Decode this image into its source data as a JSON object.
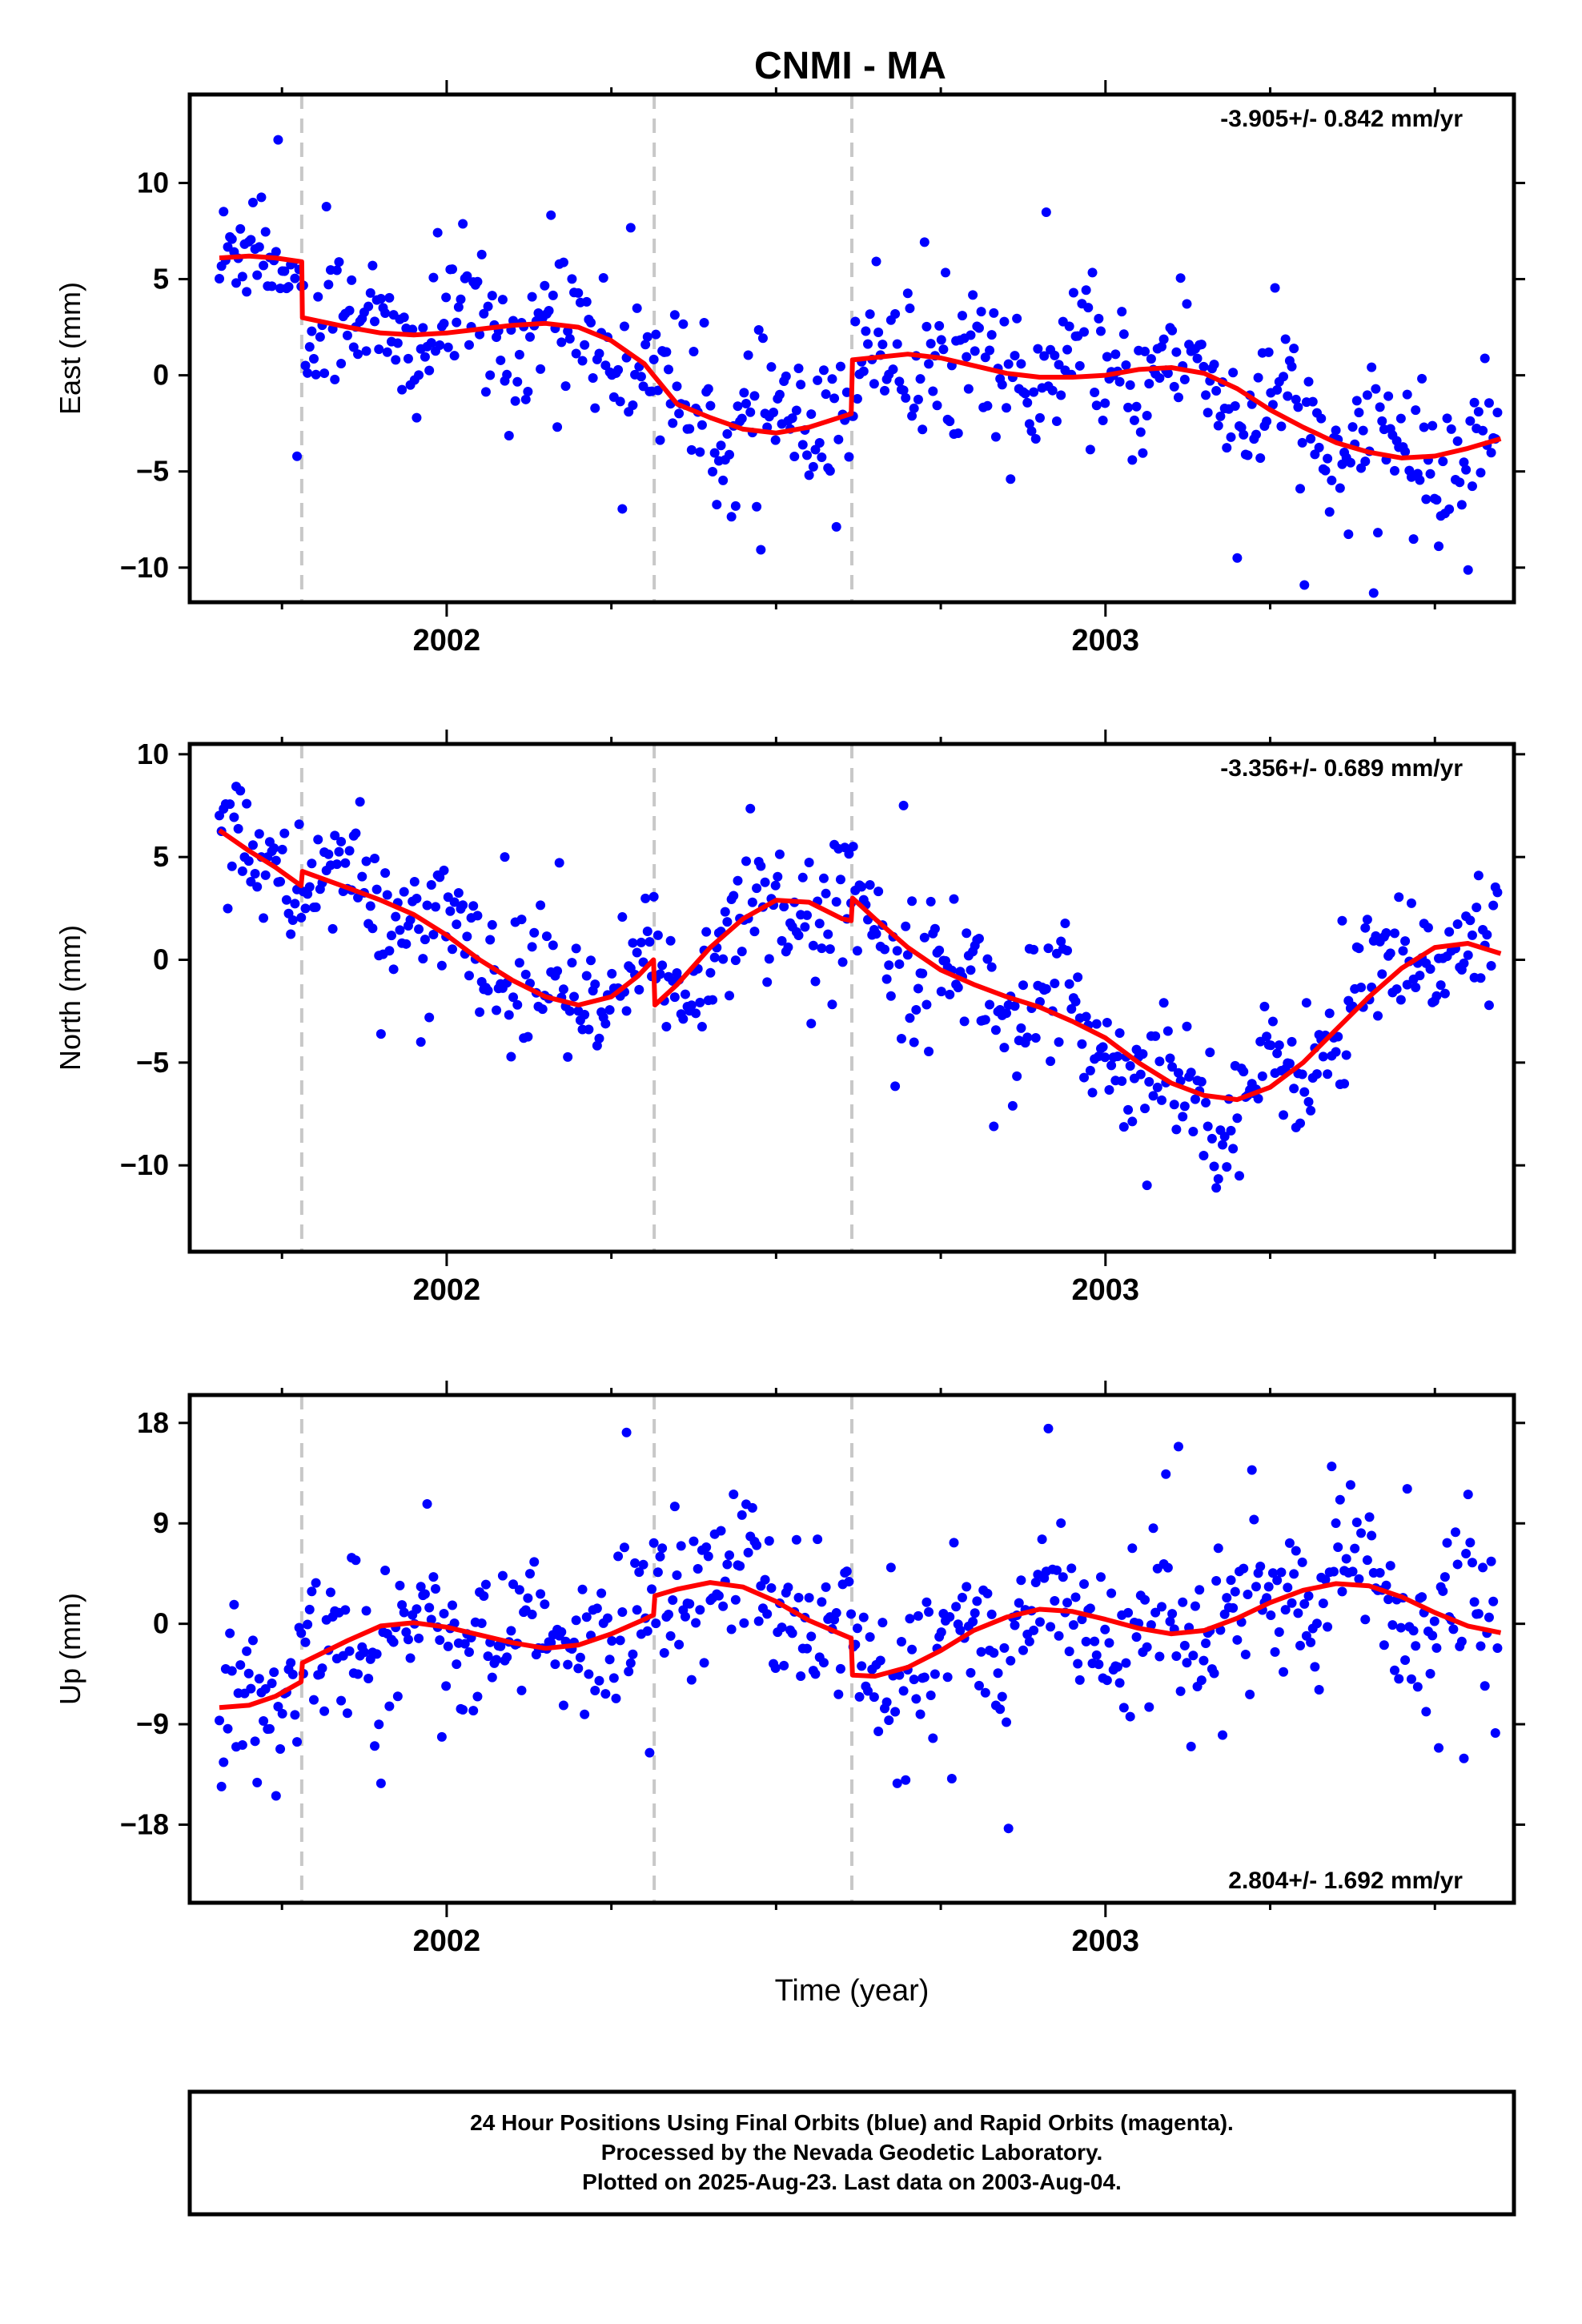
{
  "title": "CNMI - MA",
  "footer": {
    "lines": [
      "24 Hour Positions Using Final Orbits (blue) and Rapid Orbits (magenta).",
      "Processed by the Nevada Geodetic Laboratory.",
      "Plotted on 2025-Aug-23. Last data on 2003-Aug-04."
    ]
  },
  "colors": {
    "points": "#0000ff",
    "model": "#ff0000",
    "breaks": "#c8c8c8",
    "frame": "#000000"
  },
  "chart_data": [
    {
      "type": "scatter",
      "name": "east",
      "ylabel": "East (mm)",
      "xlabel": "",
      "rate_text": "-3.905+/- 0.842 mm/yr",
      "xlim": [
        2001.61,
        2003.62
      ],
      "ylim": [
        -11.8,
        14.6
      ],
      "yticks": [
        -10,
        -5,
        0,
        5,
        10
      ],
      "xticks": [
        2002,
        2003
      ],
      "break_epochs": [
        2001.78,
        2002.315,
        2002.615
      ],
      "model_curve": [
        [
          2001.655,
          6.1
        ],
        [
          2001.7,
          6.2
        ],
        [
          2001.74,
          6.1
        ],
        [
          2001.78,
          5.9
        ],
        [
          2001.781,
          3.0
        ],
        [
          2001.85,
          2.5
        ],
        [
          2001.9,
          2.2
        ],
        [
          2001.95,
          2.1
        ],
        [
          2002.0,
          2.2
        ],
        [
          2002.05,
          2.4
        ],
        [
          2002.1,
          2.6
        ],
        [
          2002.15,
          2.7
        ],
        [
          2002.2,
          2.5
        ],
        [
          2002.25,
          1.8
        ],
        [
          2002.3,
          0.6
        ],
        [
          2002.314,
          0.0
        ],
        [
          2002.35,
          -1.5
        ],
        [
          2002.4,
          -2.2
        ],
        [
          2002.45,
          -2.8
        ],
        [
          2002.5,
          -3.0
        ],
        [
          2002.55,
          -2.7
        ],
        [
          2002.614,
          -2.0
        ],
        [
          2002.616,
          0.8
        ],
        [
          2002.7,
          1.1
        ],
        [
          2002.75,
          0.9
        ],
        [
          2002.8,
          0.5
        ],
        [
          2002.85,
          0.1
        ],
        [
          2002.9,
          -0.1
        ],
        [
          2002.95,
          -0.1
        ],
        [
          2003.0,
          0.0
        ],
        [
          2003.05,
          0.3
        ],
        [
          2003.1,
          0.4
        ],
        [
          2003.15,
          0.1
        ],
        [
          2003.2,
          -0.7
        ],
        [
          2003.25,
          -1.8
        ],
        [
          2003.3,
          -2.7
        ],
        [
          2003.35,
          -3.5
        ],
        [
          2003.4,
          -4.0
        ],
        [
          2003.45,
          -4.3
        ],
        [
          2003.5,
          -4.2
        ],
        [
          2003.55,
          -3.8
        ],
        [
          2003.6,
          -3.3
        ]
      ],
      "amplitude": 3.4
    },
    {
      "type": "scatter",
      "name": "north",
      "ylabel": "North (mm)",
      "xlabel": "",
      "rate_text": "-3.356+/- 0.689 mm/yr",
      "xlim": [
        2001.61,
        2003.62
      ],
      "ylim": [
        -14.2,
        10.5
      ],
      "yticks": [
        -10,
        -5,
        0,
        5,
        10
      ],
      "xticks": [
        2002,
        2003
      ],
      "break_epochs": [
        2001.78,
        2002.315,
        2002.615
      ],
      "model_curve": [
        [
          2001.655,
          6.3
        ],
        [
          2001.7,
          5.3
        ],
        [
          2001.74,
          4.5
        ],
        [
          2001.779,
          3.6
        ],
        [
          2001.781,
          4.3
        ],
        [
          2001.85,
          3.5
        ],
        [
          2001.9,
          2.9
        ],
        [
          2001.95,
          2.2
        ],
        [
          2002.0,
          1.2
        ],
        [
          2002.05,
          0.0
        ],
        [
          2002.1,
          -1.0
        ],
        [
          2002.15,
          -1.8
        ],
        [
          2002.2,
          -2.2
        ],
        [
          2002.25,
          -1.8
        ],
        [
          2002.29,
          -0.8
        ],
        [
          2002.314,
          0.0
        ],
        [
          2002.316,
          -2.2
        ],
        [
          2002.35,
          -1.2
        ],
        [
          2002.4,
          0.6
        ],
        [
          2002.45,
          2.0
        ],
        [
          2002.5,
          2.9
        ],
        [
          2002.55,
          2.8
        ],
        [
          2002.6,
          2.0
        ],
        [
          2002.614,
          1.9
        ],
        [
          2002.616,
          3.0
        ],
        [
          2002.65,
          2.0
        ],
        [
          2002.7,
          0.6
        ],
        [
          2002.75,
          -0.5
        ],
        [
          2002.8,
          -1.2
        ],
        [
          2002.85,
          -1.8
        ],
        [
          2002.9,
          -2.3
        ],
        [
          2002.95,
          -3.0
        ],
        [
          2003.0,
          -3.8
        ],
        [
          2003.05,
          -5.0
        ],
        [
          2003.1,
          -6.0
        ],
        [
          2003.15,
          -6.6
        ],
        [
          2003.2,
          -6.8
        ],
        [
          2003.25,
          -6.2
        ],
        [
          2003.3,
          -5.0
        ],
        [
          2003.35,
          -3.4
        ],
        [
          2003.4,
          -1.8
        ],
        [
          2003.45,
          -0.4
        ],
        [
          2003.5,
          0.6
        ],
        [
          2003.55,
          0.8
        ],
        [
          2003.6,
          0.3
        ]
      ],
      "amplitude": 2.8
    },
    {
      "type": "scatter",
      "name": "up",
      "ylabel": "Up (mm)",
      "xlabel": "Time (year)",
      "rate_text": "2.804+/- 1.692 mm/yr",
      "xlim": [
        2001.61,
        2003.62
      ],
      "ylim": [
        -25.0,
        20.5
      ],
      "yticks": [
        -18,
        -9,
        0,
        9,
        18
      ],
      "xticks": [
        2002,
        2003
      ],
      "break_epochs": [
        2001.78,
        2002.315,
        2002.615
      ],
      "model_curve": [
        [
          2001.655,
          -7.5
        ],
        [
          2001.7,
          -7.3
        ],
        [
          2001.74,
          -6.5
        ],
        [
          2001.779,
          -5.2
        ],
        [
          2001.781,
          -3.5
        ],
        [
          2001.85,
          -1.5
        ],
        [
          2001.9,
          -0.2
        ],
        [
          2001.95,
          0.1
        ],
        [
          2002.0,
          -0.3
        ],
        [
          2002.05,
          -1.0
        ],
        [
          2002.1,
          -1.7
        ],
        [
          2002.15,
          -2.2
        ],
        [
          2002.2,
          -1.9
        ],
        [
          2002.25,
          -0.9
        ],
        [
          2002.3,
          0.4
        ],
        [
          2002.314,
          0.8
        ],
        [
          2002.316,
          2.5
        ],
        [
          2002.35,
          3.1
        ],
        [
          2002.4,
          3.7
        ],
        [
          2002.45,
          3.3
        ],
        [
          2002.5,
          2.0
        ],
        [
          2002.55,
          0.3
        ],
        [
          2002.614,
          -1.3
        ],
        [
          2002.616,
          -4.6
        ],
        [
          2002.65,
          -4.7
        ],
        [
          2002.7,
          -3.9
        ],
        [
          2002.75,
          -2.4
        ],
        [
          2002.8,
          -0.6
        ],
        [
          2002.85,
          0.6
        ],
        [
          2002.9,
          1.3
        ],
        [
          2002.95,
          1.1
        ],
        [
          2003.0,
          0.4
        ],
        [
          2003.05,
          -0.4
        ],
        [
          2003.1,
          -0.9
        ],
        [
          2003.15,
          -0.6
        ],
        [
          2003.2,
          0.5
        ],
        [
          2003.25,
          1.9
        ],
        [
          2003.3,
          3.0
        ],
        [
          2003.35,
          3.6
        ],
        [
          2003.4,
          3.4
        ],
        [
          2003.45,
          2.4
        ],
        [
          2003.5,
          1.0
        ],
        [
          2003.55,
          -0.2
        ],
        [
          2003.6,
          -0.8
        ]
      ],
      "amplitude": 6.5
    }
  ]
}
